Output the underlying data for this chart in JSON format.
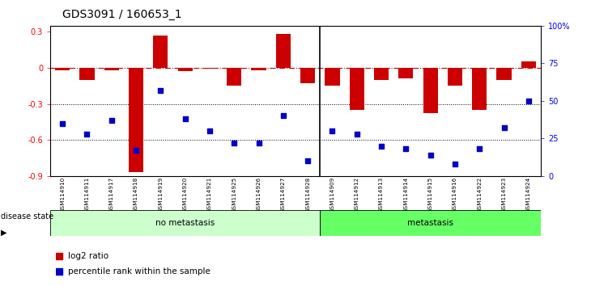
{
  "title": "GDS3091 / 160653_1",
  "samples": [
    "GSM114910",
    "GSM114911",
    "GSM114917",
    "GSM114918",
    "GSM114919",
    "GSM114920",
    "GSM114921",
    "GSM114925",
    "GSM114926",
    "GSM114927",
    "GSM114928",
    "GSM114909",
    "GSM114912",
    "GSM114913",
    "GSM114914",
    "GSM114915",
    "GSM114916",
    "GSM114922",
    "GSM114923",
    "GSM114924"
  ],
  "log2_ratio": [
    -0.02,
    -0.1,
    -0.02,
    -0.87,
    0.27,
    -0.03,
    -0.01,
    -0.15,
    -0.02,
    0.28,
    -0.13,
    -0.15,
    -0.35,
    -0.1,
    -0.09,
    -0.38,
    -0.15,
    -0.35,
    -0.1,
    0.05
  ],
  "percentile_rank": [
    35,
    28,
    37,
    17,
    57,
    38,
    30,
    22,
    22,
    40,
    10,
    30,
    28,
    20,
    18,
    14,
    8,
    18,
    32,
    50
  ],
  "no_metastasis_count": 11,
  "metastasis_count": 9,
  "ylim_left": [
    -0.9,
    0.35
  ],
  "ylim_right": [
    0,
    100
  ],
  "bar_color": "#CC0000",
  "dot_color": "#0000CC",
  "ref_line_color": "#CC0000",
  "grid_line_color": "#000000",
  "no_metastasis_color": "#CCFFCC",
  "metastasis_color": "#66FF66",
  "background_color": "#FFFFFF",
  "plot_bg_color": "#FFFFFF",
  "label_fontsize": 7,
  "title_fontsize": 10
}
